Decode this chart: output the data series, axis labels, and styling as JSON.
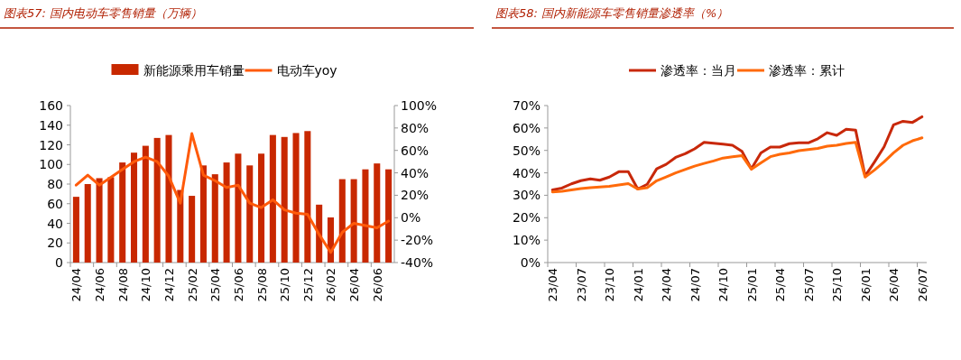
{
  "chart_data": [
    {
      "type": "bar",
      "title": "图表57: 国内电动车零售销量（万辆）",
      "categories": [
        "24/04",
        null,
        "24/06",
        null,
        "24/08",
        null,
        "24/10",
        null,
        "24/12",
        null,
        "25/02",
        null,
        "25/04",
        null,
        "25/06",
        null,
        "25/08",
        null,
        "25/10",
        null,
        "25/12",
        null,
        "26/02",
        null,
        "26/04",
        null,
        "26/06",
        null
      ],
      "series": [
        {
          "name": "新能源乘用车销量",
          "color": "#c82800",
          "values": [
            67,
            80,
            86,
            87,
            102,
            112,
            119,
            127,
            130,
            74,
            68,
            99,
            90,
            102,
            111,
            99,
            111,
            130,
            128,
            132,
            134,
            59,
            46,
            85,
            85,
            95,
            101,
            95
          ]
        },
        {
          "name": "电动车yoy",
          "type": "line",
          "axis": "y2",
          "color": "#ff5a0a",
          "values": [
            29,
            38,
            29,
            36,
            43,
            50,
            54,
            50,
            37,
            13,
            75,
            38,
            33,
            27,
            29,
            13,
            9,
            16,
            7,
            4,
            3,
            -15,
            -31,
            -13,
            -5,
            -7,
            -9,
            -3
          ]
        }
      ],
      "ylim": [
        0,
        160
      ],
      "yticks": [
        0,
        20,
        40,
        60,
        80,
        100,
        120,
        140,
        160
      ],
      "y2lim": [
        -40,
        100
      ],
      "y2ticks": [
        {
          "value": -40,
          "label": "-40%"
        },
        {
          "value": -20,
          "label": "-20%"
        },
        {
          "value": 0,
          "label": "0%"
        },
        {
          "value": 20,
          "label": "20%"
        },
        {
          "value": 40,
          "label": "40%"
        },
        {
          "value": 60,
          "label": "60%"
        },
        {
          "value": 80,
          "label": "80%"
        },
        {
          "value": 100,
          "label": "100%"
        }
      ],
      "legend": "top",
      "grid": false
    },
    {
      "type": "line",
      "title": "图表58: 国内新能源车零售销量渗透率（%）",
      "categories": [
        "23/04",
        null,
        null,
        "23/07",
        null,
        null,
        "23/10",
        null,
        null,
        "24/01",
        null,
        null,
        "24/04",
        null,
        null,
        "24/07",
        null,
        null,
        "24/10",
        null,
        null,
        "25/01",
        null,
        null,
        "25/04",
        null,
        null,
        "25/07",
        null,
        null,
        "25/10",
        null,
        null,
        "26/01",
        null,
        null,
        "26/04",
        null,
        null,
        "26/07"
      ],
      "series": [
        {
          "name": "渗透率：当月",
          "color": "#c8280a",
          "values": [
            32.4,
            33.2,
            35.1,
            36.5,
            37.3,
            36.7,
            38.1,
            40.5,
            40.5,
            32.8,
            34.9,
            41.8,
            43.8,
            46.9,
            48.5,
            50.7,
            53.6,
            53.2,
            52.8,
            52.3,
            49.6,
            41.8,
            48.9,
            51.5,
            51.5,
            53,
            53.4,
            53.4,
            55.2,
            57.9,
            56.7,
            59.4,
            59,
            38.6,
            44.9,
            51.6,
            61.4,
            63,
            62.5,
            65
          ]
        },
        {
          "name": "渗透率：累计",
          "color": "#ff6a0a",
          "values": [
            31.5,
            31.8,
            32.4,
            33,
            33.4,
            33.7,
            34,
            34.6,
            35.2,
            32.8,
            33.4,
            36.5,
            38.2,
            40,
            41.5,
            43,
            44.2,
            45.3,
            46.6,
            47.2,
            47.7,
            41.6,
            44.5,
            47.2,
            48.3,
            48.9,
            49.9,
            50.4,
            50.9,
            51.9,
            52.3,
            53.1,
            53.6,
            38.1,
            41.3,
            44.9,
            48.9,
            52.3,
            54.3,
            55.6
          ]
        }
      ],
      "ylim": [
        0,
        70
      ],
      "yticks": [
        {
          "value": 0,
          "label": "0%"
        },
        {
          "value": 10,
          "label": "10%"
        },
        {
          "value": 20,
          "label": "20%"
        },
        {
          "value": 30,
          "label": "30%"
        },
        {
          "value": 40,
          "label": "40%"
        },
        {
          "value": 50,
          "label": "50%"
        },
        {
          "value": 60,
          "label": "60%"
        },
        {
          "value": 70,
          "label": "70%"
        }
      ],
      "legend": "top",
      "grid": false
    }
  ]
}
